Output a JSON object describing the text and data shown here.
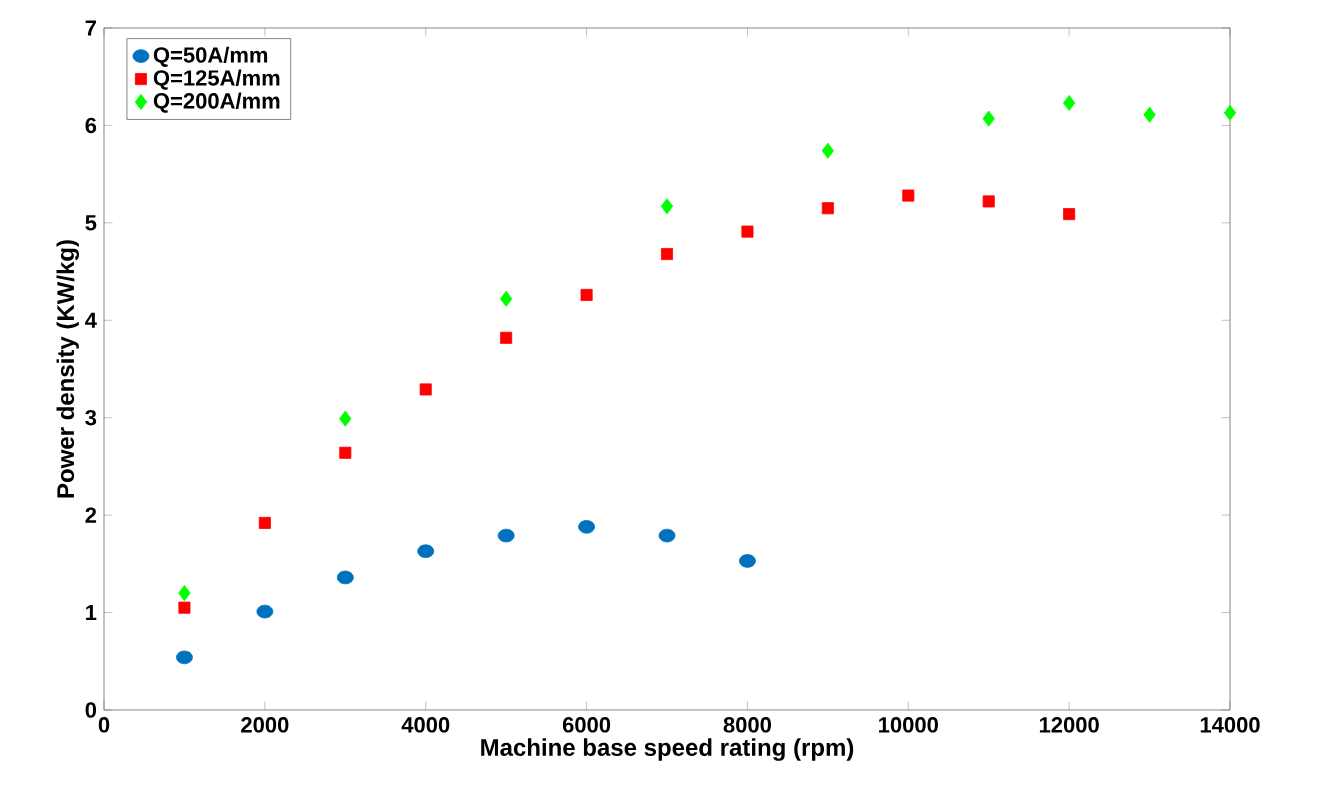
{
  "chart_data": {
    "type": "scatter",
    "xlabel": "Machine base speed rating (rpm)",
    "ylabel": "Power density (KW/kg)",
    "xlim": [
      0,
      14000
    ],
    "ylim": [
      0,
      7
    ],
    "xticks": [
      0,
      2000,
      4000,
      6000,
      8000,
      10000,
      12000,
      14000
    ],
    "yticks": [
      0,
      1,
      2,
      3,
      4,
      5,
      6,
      7
    ],
    "legend": "top left",
    "grid": false,
    "series": [
      {
        "name": "Q=50A/mm",
        "color": "#0072bd",
        "marker": "circle",
        "x": [
          1000,
          2000,
          3000,
          4000,
          5000,
          6000,
          7000,
          8000
        ],
        "values": [
          0.54,
          1.01,
          1.36,
          1.63,
          1.79,
          1.88,
          1.79,
          1.53
        ]
      },
      {
        "name": "Q=125A/mm",
        "color": "#ff0000",
        "marker": "square",
        "x": [
          1000,
          2000,
          3000,
          4000,
          5000,
          6000,
          7000,
          8000,
          9000,
          10000,
          11000,
          12000
        ],
        "values": [
          1.05,
          1.92,
          2.64,
          3.29,
          3.82,
          4.26,
          4.68,
          4.91,
          5.15,
          5.28,
          5.22,
          5.09
        ]
      },
      {
        "name": "Q=200A/mm",
        "color": "#00ff00",
        "marker": "diamond",
        "x": [
          1000,
          3000,
          5000,
          7000,
          9000,
          11000,
          12000,
          13000,
          14000
        ],
        "values": [
          1.2,
          2.99,
          4.22,
          5.17,
          5.74,
          6.07,
          6.23,
          6.11,
          6.13
        ]
      }
    ]
  }
}
